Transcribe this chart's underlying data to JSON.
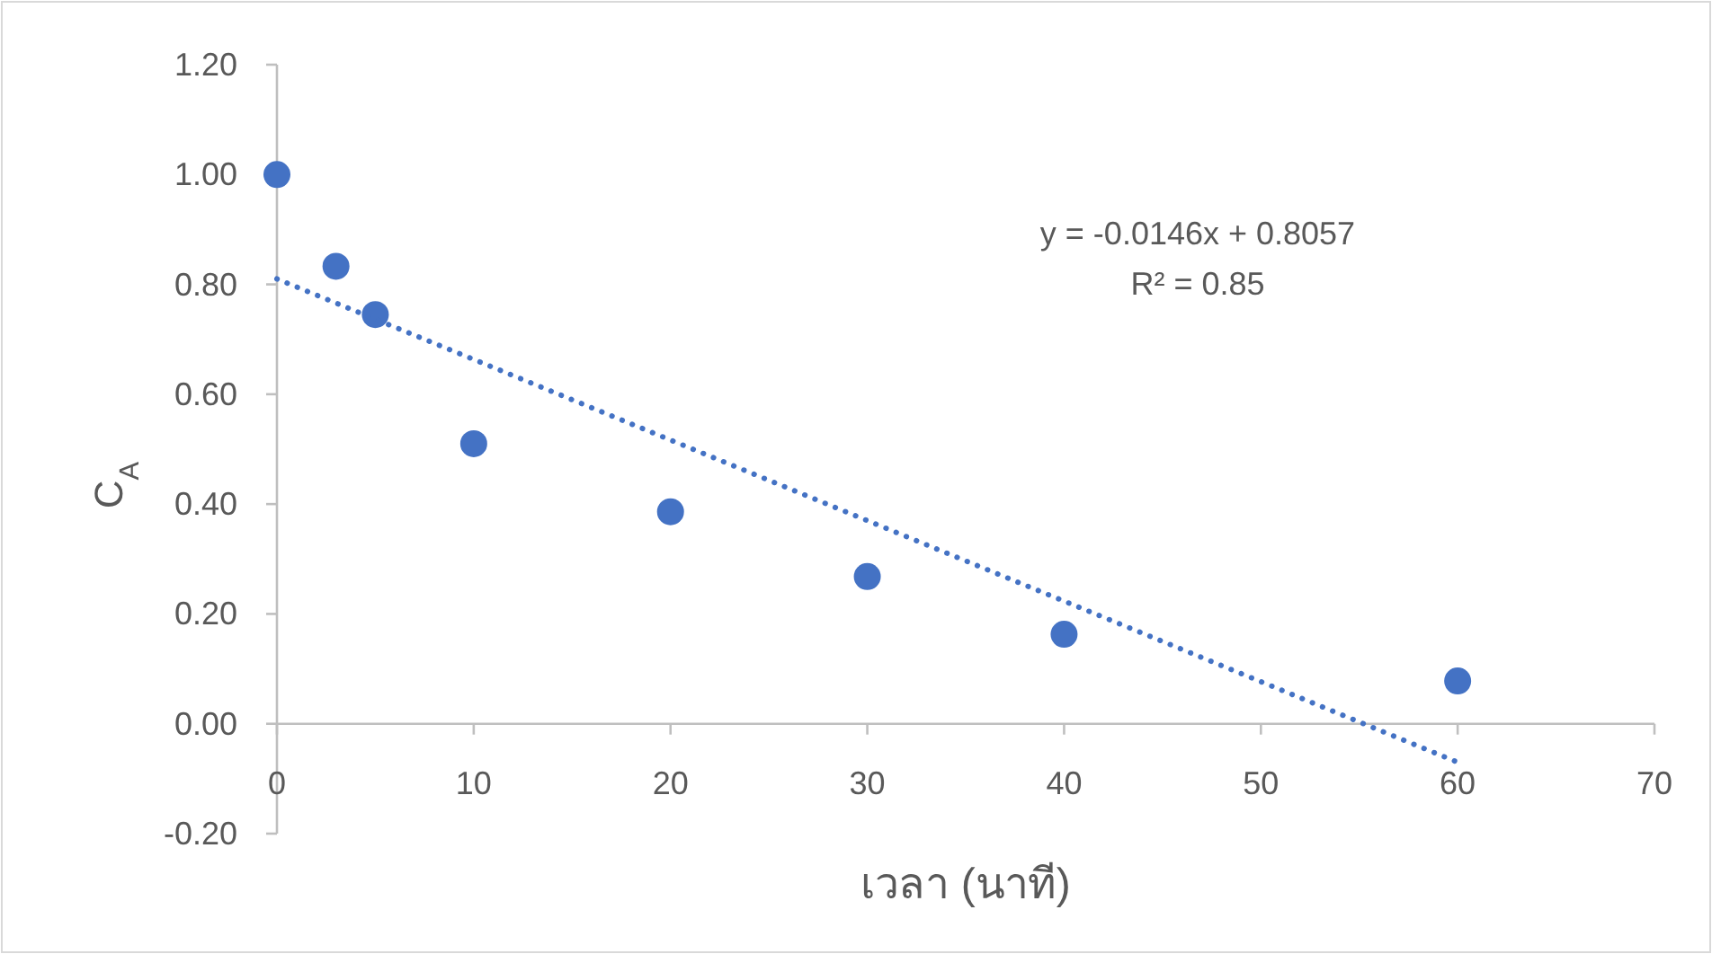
{
  "chart_data": {
    "type": "scatter",
    "xlabel": "เวลา (นาที)",
    "ylabel": "C$_{A}$",
    "series": [
      {
        "type": "scatter",
        "color": "#4472c4",
        "marker": "circle",
        "x": [
          0,
          3,
          5,
          10,
          20,
          30,
          40,
          60
        ],
        "values": [
          1.0,
          0.833,
          0.745,
          0.51,
          0.386,
          0.268,
          0.163,
          0.078
        ]
      },
      {
        "type": "line",
        "color": "#4472c4",
        "line_style": "dotted",
        "marker": "none",
        "x": [
          0,
          60
        ],
        "values": [
          0.81,
          -0.07
        ]
      }
    ],
    "annotations": [
      "y = -0.0146x + 0.8057",
      "R² = 0.85"
    ],
    "xlim": [
      0,
      70
    ],
    "xticks": [
      0,
      10,
      20,
      30,
      40,
      50,
      60,
      70
    ],
    "ylim": [
      -0.2,
      1.2
    ],
    "yticks": [
      {
        "value": -0.2,
        "label": "-0.20"
      },
      {
        "value": 0,
        "label": "0.00"
      },
      {
        "value": 0.2,
        "label": "0.20"
      },
      {
        "value": 0.4,
        "label": "0.40"
      },
      {
        "value": 0.6,
        "label": "0.60"
      },
      {
        "value": 0.8,
        "label": "0.80"
      },
      {
        "value": 1.0,
        "label": "1.00"
      },
      {
        "value": 1.2,
        "label": "1.20"
      }
    ],
    "grid": false
  }
}
